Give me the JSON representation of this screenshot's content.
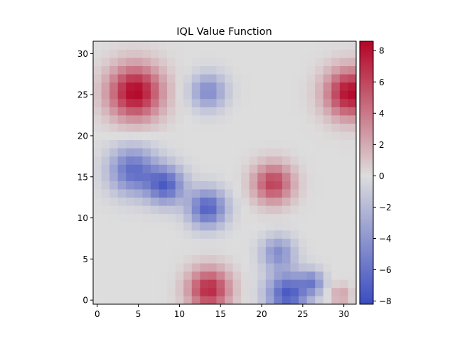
{
  "chart_data": {
    "type": "heatmap",
    "title": "IQL Value Function",
    "xlabel": "",
    "ylabel": "",
    "grid_size": 32,
    "xlim": [
      -0.5,
      31.5
    ],
    "ylim": [
      -0.5,
      31.5
    ],
    "x_ticks": [
      0,
      5,
      10,
      15,
      20,
      25,
      30
    ],
    "y_ticks": [
      0,
      5,
      10,
      15,
      20,
      25,
      30
    ],
    "colormap": "coolwarm",
    "vmin": -8.2,
    "vmax": 8.6,
    "colorbar_ticks": [
      8,
      6,
      4,
      2,
      0,
      -2,
      -4,
      -6,
      -8
    ],
    "colorbar_tick_labels": [
      "8",
      "6",
      "4",
      "2",
      "0",
      "−2",
      "−4",
      "−6",
      "−8"
    ],
    "background_value": 0.0,
    "blobs": [
      {
        "x": 4.6,
        "y": 25.3,
        "peak": 8.5,
        "radius": 2.3
      },
      {
        "x": 30.8,
        "y": 25.2,
        "peak": 8.4,
        "radius": 2.1
      },
      {
        "x": 21.4,
        "y": 14.2,
        "peak": 6.2,
        "radius": 1.7
      },
      {
        "x": 13.6,
        "y": 1.3,
        "peak": 7.2,
        "radius": 1.8
      },
      {
        "x": 29.6,
        "y": 0.6,
        "peak": 2.4,
        "radius": 0.9
      },
      {
        "x": 13.5,
        "y": 25.4,
        "peak": -4.6,
        "radius": 1.5
      },
      {
        "x": 4.3,
        "y": 15.8,
        "peak": -6.2,
        "radius": 2.0
      },
      {
        "x": 8.3,
        "y": 14.0,
        "peak": -6.8,
        "radius": 1.6
      },
      {
        "x": 13.4,
        "y": 11.2,
        "peak": -7.0,
        "radius": 1.6
      },
      {
        "x": 22.0,
        "y": 5.8,
        "peak": -4.4,
        "radius": 1.4
      },
      {
        "x": 23.2,
        "y": 0.8,
        "peak": -7.4,
        "radius": 1.8
      },
      {
        "x": 26.2,
        "y": 2.2,
        "peak": -4.2,
        "radius": 1.0
      }
    ]
  },
  "colors": {
    "low": "#3b4cc0",
    "mid": "#dddddd",
    "high": "#b40426"
  }
}
